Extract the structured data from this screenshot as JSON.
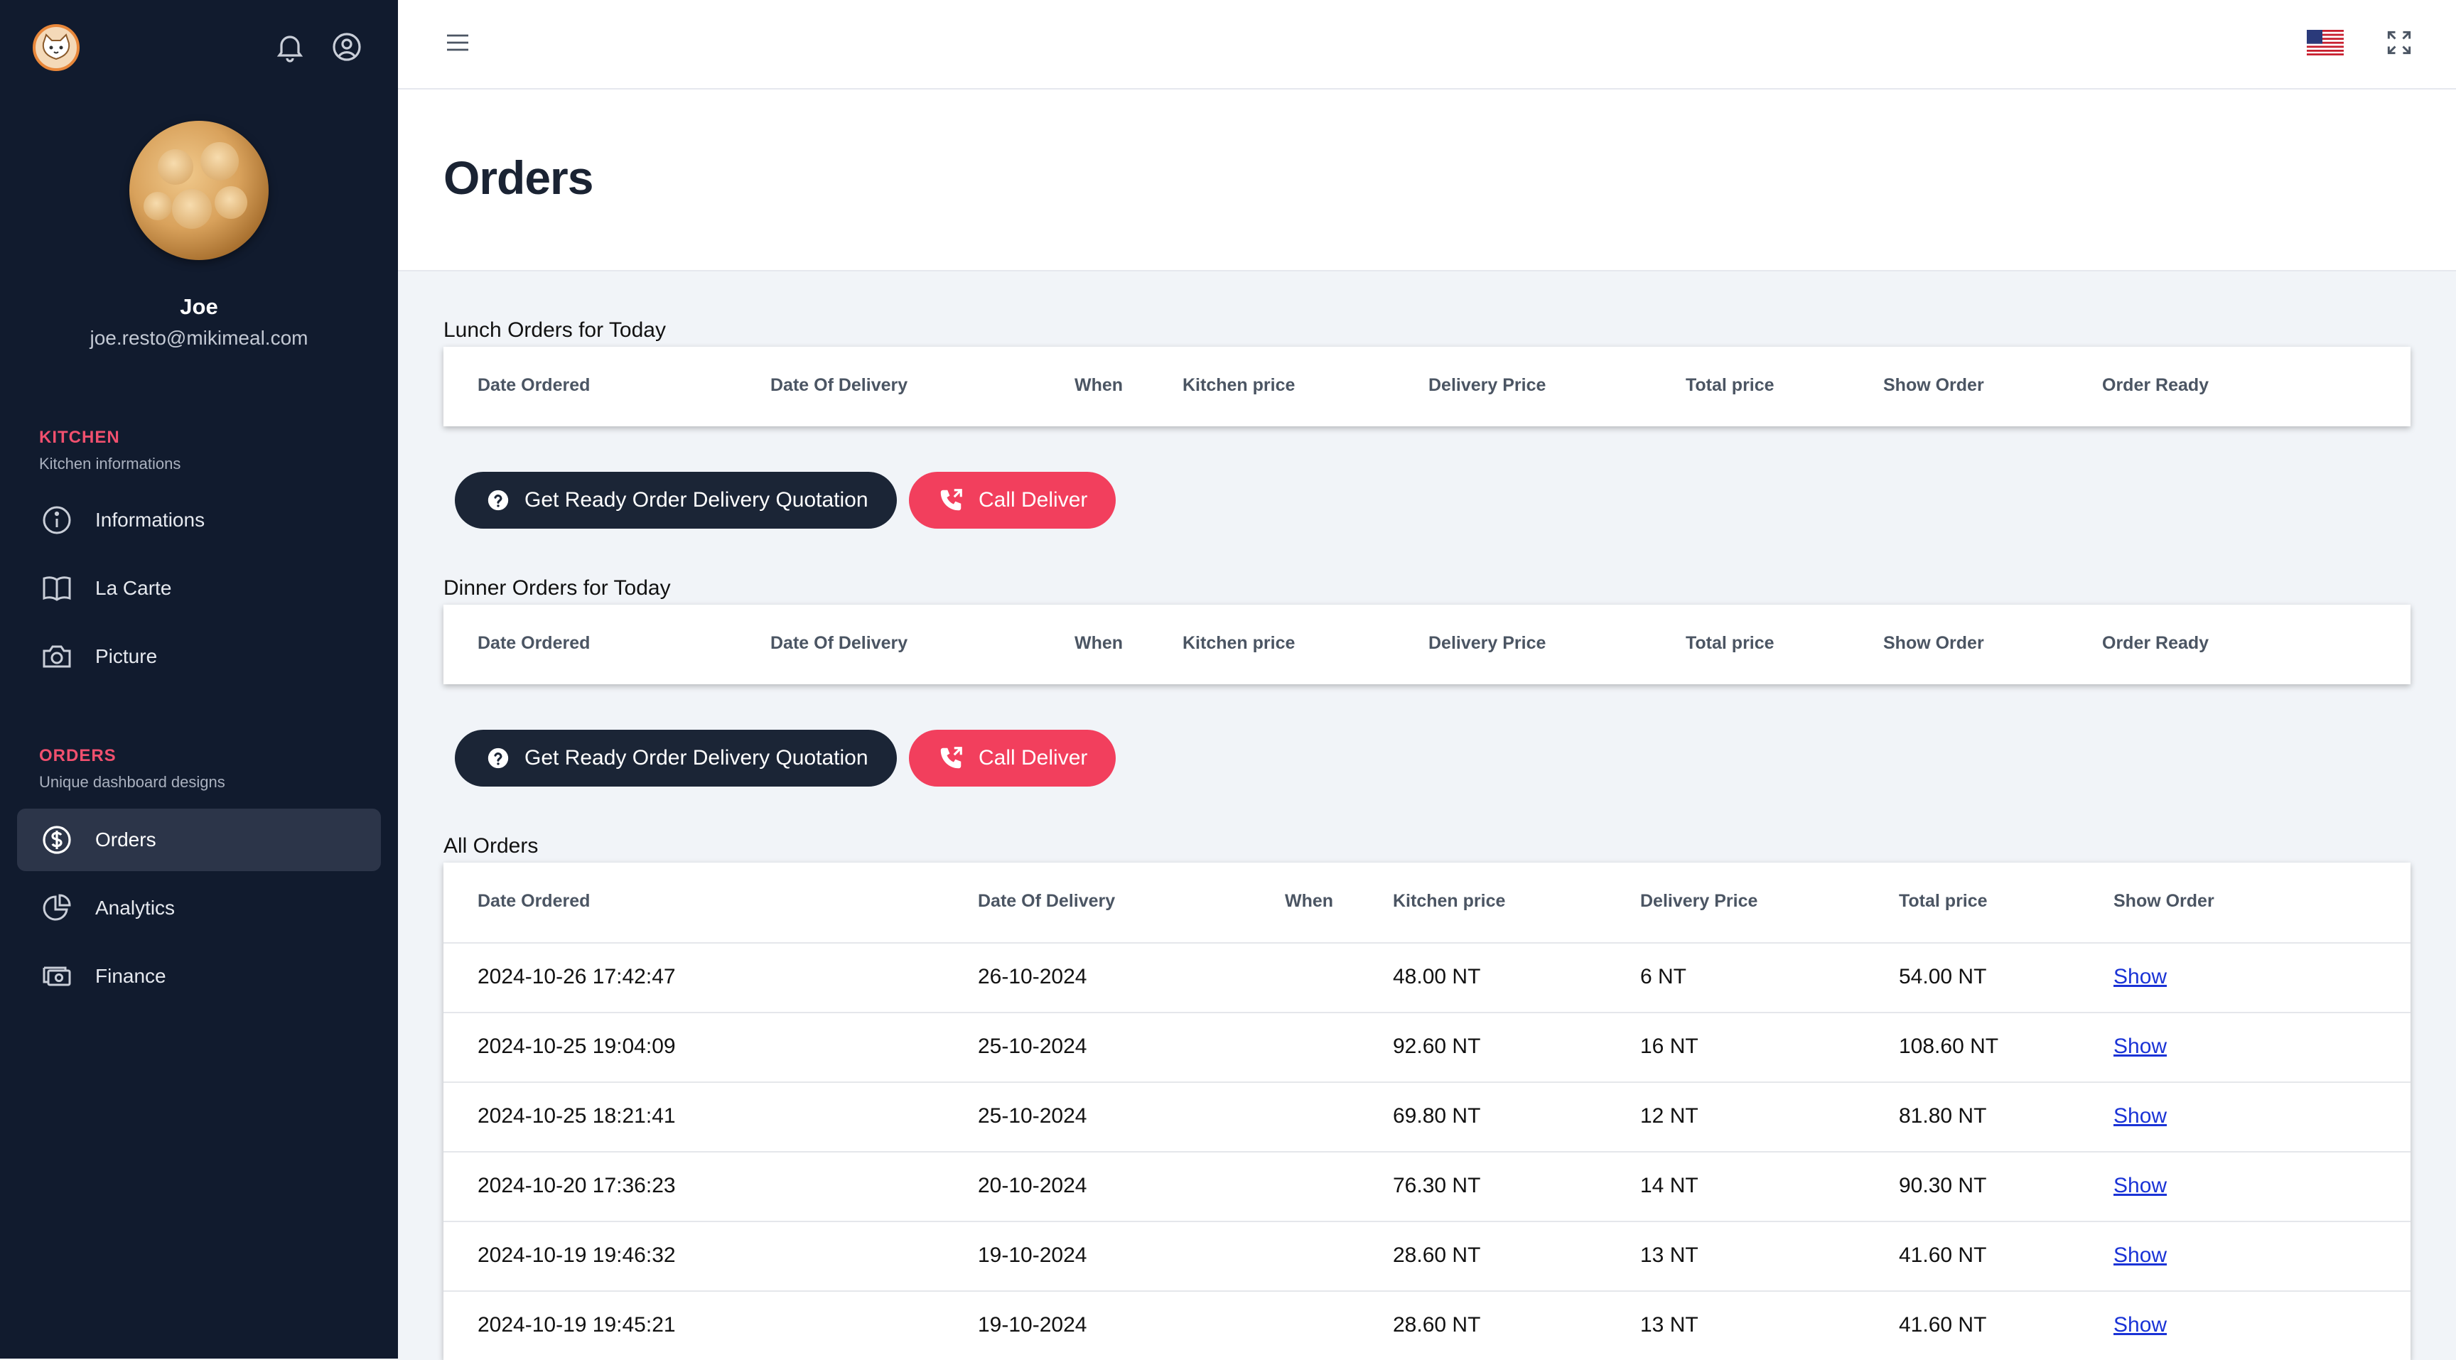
{
  "sidebar": {
    "user": {
      "name": "Joe",
      "email": "joe.resto@mikimeal.com"
    },
    "kitchen_section": {
      "title": "KITCHEN",
      "subtitle": "Kitchen informations",
      "items": [
        {
          "label": "Informations",
          "icon": "info-icon"
        },
        {
          "label": "La Carte",
          "icon": "book-icon"
        },
        {
          "label": "Picture",
          "icon": "camera-icon"
        }
      ]
    },
    "orders_section": {
      "title": "ORDERS",
      "subtitle": "Unique dashboard designs",
      "items": [
        {
          "label": "Orders",
          "icon": "dollar-circle-icon",
          "active": true
        },
        {
          "label": "Analytics",
          "icon": "pie-chart-icon"
        },
        {
          "label": "Finance",
          "icon": "money-icon"
        }
      ]
    }
  },
  "page": {
    "title": "Orders"
  },
  "lunch": {
    "label": "Lunch Orders for Today",
    "headers": [
      "Date Ordered",
      "Date Of Delivery",
      "When",
      "Kitchen price",
      "Delivery Price",
      "Total price",
      "Show Order",
      "Order Ready"
    ]
  },
  "dinner": {
    "label": "Dinner Orders for Today",
    "headers": [
      "Date Ordered",
      "Date Of Delivery",
      "When",
      "Kitchen price",
      "Delivery Price",
      "Total price",
      "Show Order",
      "Order Ready"
    ]
  },
  "buttons": {
    "quotation_label": "Get Ready Order Delivery Quotation",
    "call_label": "Call Deliver"
  },
  "all_orders": {
    "label": "All Orders",
    "headers": [
      "Date Ordered",
      "Date Of Delivery",
      "When",
      "Kitchen price",
      "Delivery Price",
      "Total price",
      "Show Order"
    ],
    "rows": [
      [
        "2024-10-26 17:42:47",
        "26-10-2024",
        "",
        "48.00 NT",
        "6 NT",
        "54.00 NT",
        "Show"
      ],
      [
        "2024-10-25 19:04:09",
        "25-10-2024",
        "",
        "92.60 NT",
        "16 NT",
        "108.60 NT",
        "Show"
      ],
      [
        "2024-10-25 18:21:41",
        "25-10-2024",
        "",
        "69.80 NT",
        "12 NT",
        "81.80 NT",
        "Show"
      ],
      [
        "2024-10-20 17:36:23",
        "20-10-2024",
        "",
        "76.30 NT",
        "14 NT",
        "90.30 NT",
        "Show"
      ],
      [
        "2024-10-19 19:46:32",
        "19-10-2024",
        "",
        "28.60 NT",
        "13 NT",
        "41.60 NT",
        "Show"
      ],
      [
        "2024-10-19 19:45:21",
        "19-10-2024",
        "",
        "28.60 NT",
        "13 NT",
        "41.60 NT",
        "Show"
      ]
    ]
  },
  "colors": {
    "sidebar_bg": "#111b2e",
    "accent_red": "#f23f5d",
    "dark_button": "#1b2536",
    "link": "#1a33d6"
  }
}
